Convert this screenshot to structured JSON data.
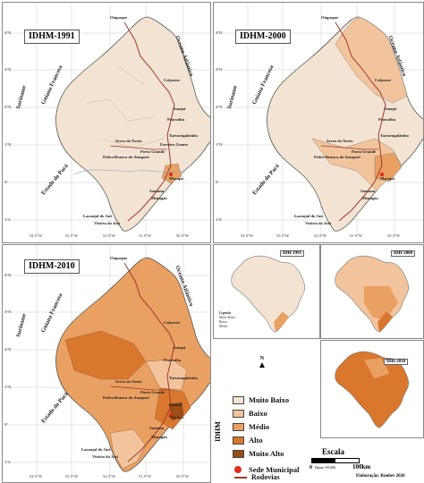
{
  "colors": {
    "muito_baixo": "#f3e3d3",
    "baixo": "#f2c49d",
    "medio": "#e9a063",
    "alto": "#d9772f",
    "muito_alto": "#9a4d16",
    "road": "#a13a2a",
    "river": "#8aa6c4",
    "sede": "#e02b1f"
  },
  "panels": [
    {
      "title": "IDHM-1991"
    },
    {
      "title": "IDHM-2000"
    },
    {
      "title": "IDHM-2010"
    }
  ],
  "neighbors": {
    "suriname": "Suriname",
    "guiana": "Guiana Francesa",
    "oceano": "Oceano Atlântico",
    "para": "Estado do Pará"
  },
  "cities": {
    "oiapoque": "Oiapoque",
    "calcoene": "Calçoene",
    "amapa": "Amapá",
    "pracuuba": "Pracuúba",
    "tartarugalzinho": "Tartarugalzinho",
    "serra_navio": "Serra do Navio",
    "pedra_branca": "Pedra Branca do Amapari",
    "porto_grande": "Porto Grande",
    "ferreira_gomes": "Ferreira Gomes",
    "cutias": "Cutias",
    "macapa": "Macapá",
    "santana": "Santana",
    "mazagao": "Mazagão",
    "laranjal": "Laranjal do Jari",
    "vitoria": "Vitória do Jari",
    "itaubal": "Itaubal"
  },
  "lat_ticks": [
    "4°N",
    "3°N",
    "2°N",
    "1°N",
    "0°",
    "1°S"
  ],
  "lon_ticks": [
    "54.5°W",
    "53.5°W",
    "52.5°W",
    "51.5°W",
    "50.5°W"
  ],
  "mini_maps": [
    {
      "title": "IDH-1991"
    },
    {
      "title": "IDH-2000"
    },
    {
      "title": "IDH-2010"
    }
  ],
  "mini_legend": {
    "title": "Legenda",
    "items": [
      "Muito Baixo",
      "Baixo",
      "Médio",
      "Alto",
      "Muito Alto"
    ]
  },
  "legend": {
    "axis_title": "IDHM",
    "items": [
      "Muito Baixo",
      "Baixo",
      "Médio",
      "Alto",
      "Muito Alto"
    ],
    "sede": "Sede Municipal",
    "rodovias": "Rodovias"
  },
  "north": "N",
  "scale": {
    "title": "Escala",
    "zero": "0",
    "end": "100km",
    "datum": "Datum: WGS84"
  },
  "credit": "Elaboração: Rauber 2020"
}
